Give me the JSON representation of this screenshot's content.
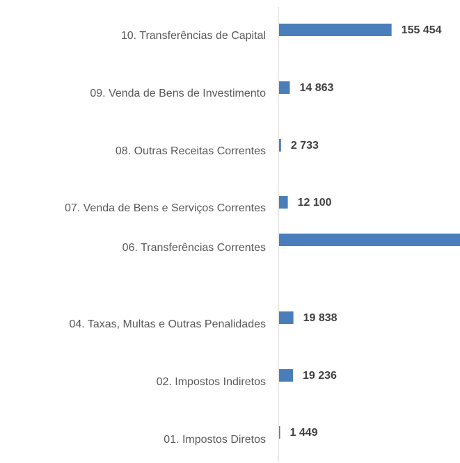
{
  "chart_data": {
    "type": "bar",
    "orientation": "horizontal",
    "categories": [
      "10. Transferências de Capital",
      "09. Venda de Bens de Investimento",
      "08. Outras Receitas Correntes",
      "07. Venda de Bens e Serviços Correntes",
      "06. Transferências Correntes",
      "04. Taxas, Multas e Outras Penalidades",
      "02. Impostos Indiretos",
      "01. Impostos Diretos"
    ],
    "values": [
      155454,
      14863,
      2733,
      12100,
      250000,
      19838,
      19236,
      1449
    ],
    "value_labels": [
      "155 454",
      "14 863",
      "2 733",
      "12 100",
      null,
      "19 838",
      "19 236",
      "1 449"
    ],
    "color": "#4a7ebb",
    "xlim": [
      0,
      250000
    ]
  }
}
